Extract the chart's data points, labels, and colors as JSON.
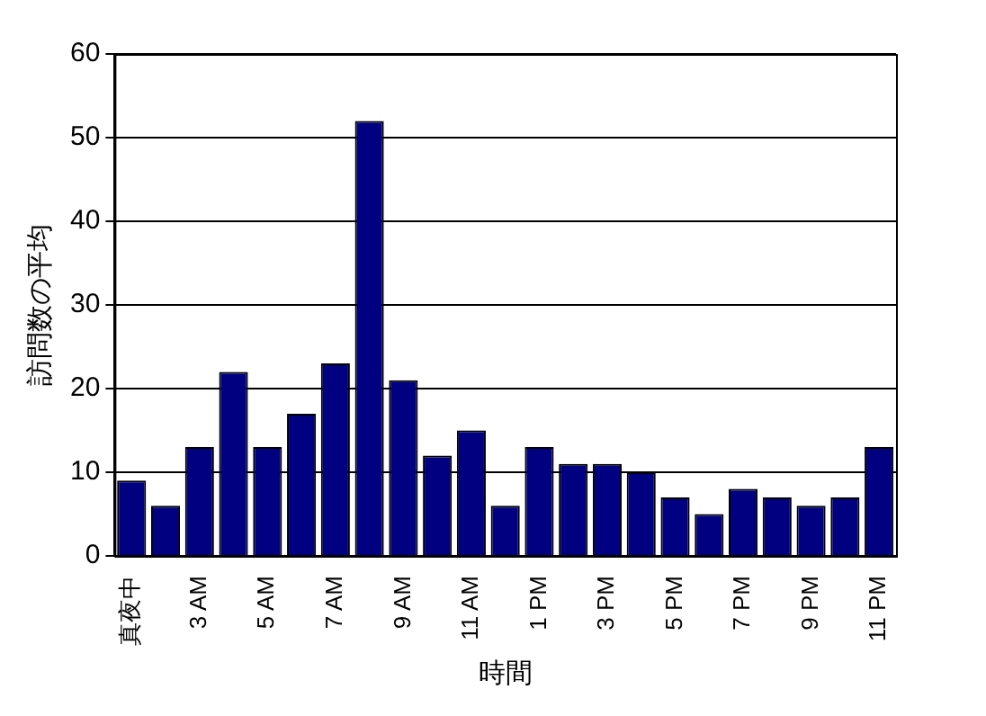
{
  "chart_data": {
    "type": "bar",
    "xlabel": "時間",
    "ylabel": "訪問数の平均",
    "categories": [
      "真夜中",
      null,
      "3 AM",
      null,
      "5 AM",
      null,
      "7 AM",
      null,
      "9 AM",
      null,
      "11 AM",
      null,
      "1 PM",
      null,
      "3 PM",
      null,
      "5 PM",
      null,
      "7 PM",
      null,
      "9 PM",
      null,
      "11 PM"
    ],
    "values": [
      9,
      6,
      13,
      22,
      13,
      17,
      23,
      52,
      21,
      12,
      15,
      6,
      13,
      11,
      11,
      10,
      7,
      5,
      8,
      7,
      6,
      7,
      13
    ],
    "color": "#000080",
    "ylim": [
      0,
      60
    ],
    "yticks": [
      0,
      10,
      20,
      30,
      40,
      50,
      60
    ],
    "grid": "y",
    "legend": false
  }
}
